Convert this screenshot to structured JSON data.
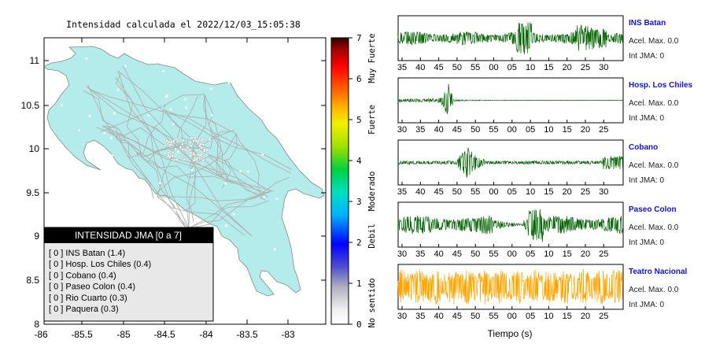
{
  "map": {
    "title": "Intensidad calculada el 2022/12/03_15:05:38",
    "lat_ticks": [
      "11",
      "10.5",
      "10",
      "9.5",
      "9",
      "8.5",
      "8"
    ],
    "lon_ticks": [
      "-86",
      "-85.5",
      "-85",
      "-84.5",
      "-84",
      "-83.5",
      "-83"
    ],
    "land_color": "#b4ecec",
    "legend": {
      "title": "INTENSIDAD JMA [0 a 7]",
      "items": [
        "[ 0 ]  INS Batan (1.4)",
        "[ 0 ]  Hosp. Los Chiles (0.4)",
        "[ 0 ]  Cobano (0.4)",
        "[ 0 ]  Paseo Colon (0.4)",
        "[ 0 ]  Rio Cuarto (0.3)",
        "[ 0 ]  Paquera (0.3)"
      ]
    }
  },
  "colorbar": {
    "ticks": [
      "7",
      "6",
      "5",
      "4",
      "3",
      "2",
      "1",
      "0"
    ],
    "categories": [
      "Muy Fuerte",
      "Fuerte",
      "Moderado",
      "Debil",
      "No sentido"
    ]
  },
  "stations": [
    {
      "name": "INS Batan",
      "accel": "Acel. Max. 0.0",
      "jma": "Int JMA: 0",
      "color": "#006400",
      "ticks": [
        "35",
        "40",
        "45",
        "50",
        "55",
        "00",
        "05",
        "10",
        "15",
        "20",
        "25",
        "30"
      ]
    },
    {
      "name": "Hosp. Los Chiles",
      "accel": "Acel. Max. 0.0",
      "jma": "Int JMA: 0",
      "color": "#006400",
      "ticks": [
        "30",
        "35",
        "40",
        "45",
        "50",
        "55",
        "00",
        "05",
        "10",
        "15",
        "20",
        "25"
      ]
    },
    {
      "name": "Cobano",
      "accel": "Acel. Max. 0.0",
      "jma": "Int JMA: 0",
      "color": "#006400",
      "ticks": [
        "35",
        "40",
        "45",
        "50",
        "55",
        "00",
        "05",
        "10",
        "15",
        "20",
        "25",
        "30"
      ]
    },
    {
      "name": "Paseo Colon",
      "accel": "Acel. Max. 0.0",
      "jma": "Int JMA: 0",
      "color": "#006400",
      "ticks": [
        "30",
        "35",
        "40",
        "45",
        "50",
        "55",
        "00",
        "05",
        "10",
        "15",
        "20",
        "25"
      ]
    },
    {
      "name": "Teatro Nacional",
      "accel": "Acel. Max. 0.0",
      "jma": "Int JMA: 0",
      "color": "#ffa500",
      "ticks": [
        "30",
        "35",
        "40",
        "45",
        "50",
        "55",
        "00",
        "05",
        "10",
        "15",
        "20",
        "25"
      ]
    }
  ],
  "waveforms": {
    "xlabel": "Tiempo (s)"
  }
}
